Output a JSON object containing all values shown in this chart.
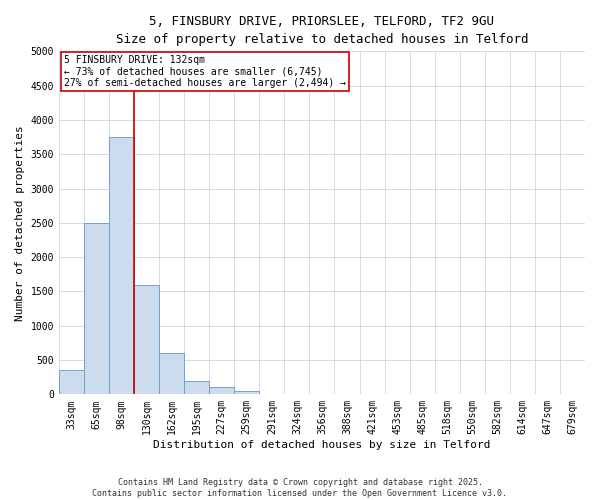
{
  "title_line1": "5, FINSBURY DRIVE, PRIORSLEE, TELFORD, TF2 9GU",
  "title_line2": "Size of property relative to detached houses in Telford",
  "xlabel": "Distribution of detached houses by size in Telford",
  "ylabel": "Number of detached properties",
  "categories": [
    "33sqm",
    "65sqm",
    "98sqm",
    "130sqm",
    "162sqm",
    "195sqm",
    "227sqm",
    "259sqm",
    "291sqm",
    "324sqm",
    "356sqm",
    "388sqm",
    "421sqm",
    "453sqm",
    "485sqm",
    "518sqm",
    "550sqm",
    "582sqm",
    "614sqm",
    "647sqm",
    "679sqm"
  ],
  "bar_values": [
    350,
    2500,
    3750,
    1600,
    600,
    200,
    110,
    50,
    0,
    0,
    0,
    0,
    0,
    0,
    0,
    0,
    0,
    0,
    0,
    0,
    0
  ],
  "bar_color": "#ccdcee",
  "bar_edge_color": "#6699cc",
  "property_line_index": 3,
  "property_line_color": "#cc0000",
  "ylim": [
    0,
    5000
  ],
  "yticks": [
    0,
    500,
    1000,
    1500,
    2000,
    2500,
    3000,
    3500,
    4000,
    4500,
    5000
  ],
  "annotation_text": "5 FINSBURY DRIVE: 132sqm\n← 73% of detached houses are smaller (6,745)\n27% of semi-detached houses are larger (2,494) →",
  "annotation_box_color": "#cc0000",
  "footer_text": "Contains HM Land Registry data © Crown copyright and database right 2025.\nContains public sector information licensed under the Open Government Licence v3.0.",
  "background_color": "#ffffff",
  "grid_color": "#c8d8e8",
  "title_fontsize": 9,
  "subtitle_fontsize": 8,
  "axis_label_fontsize": 8,
  "tick_fontsize": 7,
  "annotation_fontsize": 7,
  "footer_fontsize": 6
}
